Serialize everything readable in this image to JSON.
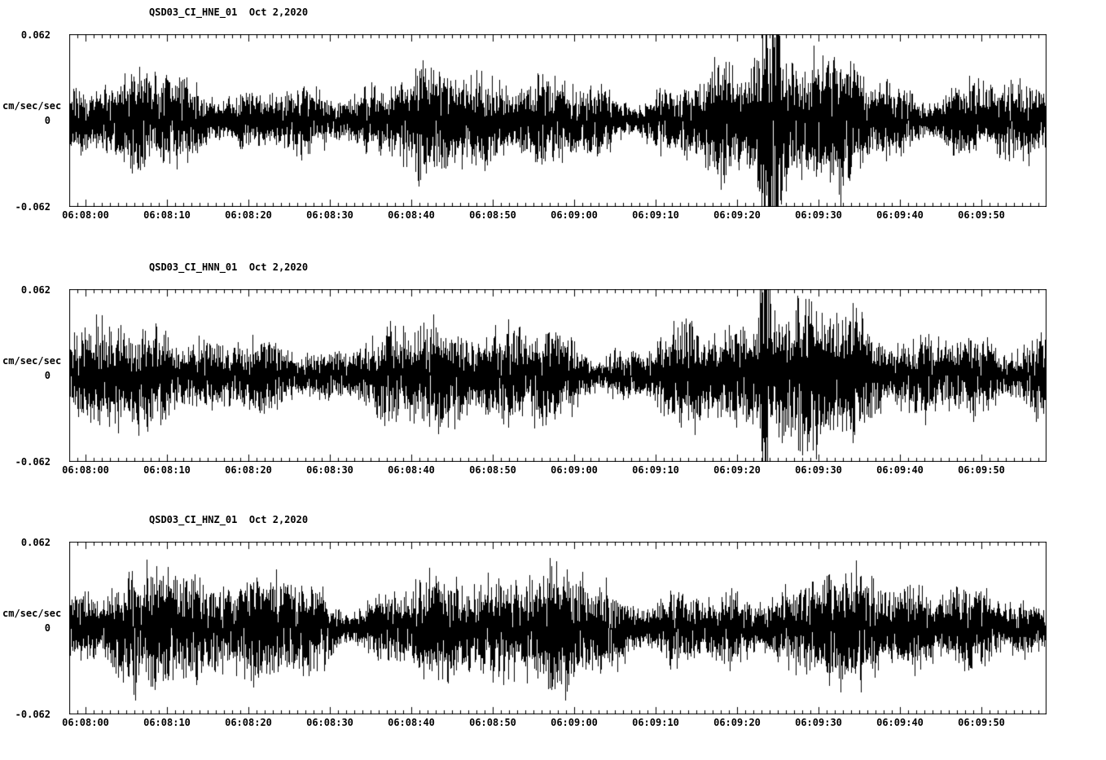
{
  "page": {
    "background": "#ffffff",
    "text_color": "#000000"
  },
  "chart_data": [
    {
      "type": "line",
      "subtype": "seismogram",
      "title": "QSD03_CI_HNE_01  Oct 2,2020",
      "station": "QSD03_CI_HNE_01",
      "channel": "HNE",
      "date": "Oct 2,2020",
      "ylabel": "cm/sec/sec",
      "ylim": [
        -0.062,
        0.062
      ],
      "ytick_labels": [
        "0.062",
        "0",
        "-0.062"
      ],
      "x_start": "06:08:00",
      "x_end": "06:10:00",
      "duration_seconds": 120,
      "t_offset_seconds": -2,
      "xtick_labels": [
        "06:08:00",
        "06:08:10",
        "06:08:20",
        "06:08:30",
        "06:08:40",
        "06:08:50",
        "06:09:00",
        "06:09:10",
        "06:09:20",
        "06:09:30",
        "06:09:40",
        "06:09:50"
      ],
      "grid": false,
      "line_color": "#000000",
      "waveform": {
        "kind": "continuous-accelerometer-noise",
        "base_amplitude": 0.0115,
        "typical_peak": 0.02,
        "seed": 101,
        "trend": [
          0.9,
          1.15
        ],
        "bursts": [
          {
            "time": "06:09:24",
            "t": 84,
            "sigma": 0.9,
            "gain": 1.9,
            "peak_amplitude": 0.05
          },
          {
            "time": "06:09:28",
            "t": 88,
            "sigma": 5,
            "gain": 0.3
          }
        ],
        "outlier_prob": 0.02
      }
    },
    {
      "type": "line",
      "subtype": "seismogram",
      "title": "QSD03_CI_HNN_01  Oct 2,2020",
      "station": "QSD03_CI_HNN_01",
      "channel": "HNN",
      "date": "Oct 2,2020",
      "ylabel": "cm/sec/sec",
      "ylim": [
        -0.062,
        0.062
      ],
      "ytick_labels": [
        "0.062",
        "0",
        "-0.062"
      ],
      "x_start": "06:08:00",
      "x_end": "06:10:00",
      "duration_seconds": 120,
      "t_offset_seconds": -2,
      "xtick_labels": [
        "06:08:00",
        "06:08:10",
        "06:08:20",
        "06:08:30",
        "06:08:40",
        "06:08:50",
        "06:09:00",
        "06:09:10",
        "06:09:20",
        "06:09:30",
        "06:09:40",
        "06:09:50"
      ],
      "grid": false,
      "line_color": "#000000",
      "waveform": {
        "kind": "continuous-accelerometer-noise",
        "base_amplitude": 0.012,
        "typical_peak": 0.02,
        "seed": 202,
        "trend": [
          0.95,
          1.1
        ],
        "bursts": [
          {
            "time": "06:09:23",
            "t": 83.5,
            "sigma": 0.4,
            "gain": 2.4,
            "peak_amplitude": -0.058
          },
          {
            "time": "06:09:30",
            "t": 90,
            "sigma": 12,
            "gain": 0.25
          }
        ],
        "outlier_prob": 0.02
      }
    },
    {
      "type": "line",
      "subtype": "seismogram",
      "title": "QSD03_CI_HNZ_01  Oct 2,2020",
      "station": "QSD03_CI_HNZ_01",
      "channel": "HNZ",
      "date": "Oct 2,2020",
      "ylabel": "cm/sec/sec",
      "ylim": [
        -0.062,
        0.062
      ],
      "ytick_labels": [
        "0.062",
        "0",
        "-0.062"
      ],
      "x_start": "06:08:00",
      "x_end": "06:10:00",
      "duration_seconds": 120,
      "t_offset_seconds": -2,
      "xtick_labels": [
        "06:08:00",
        "06:08:10",
        "06:08:20",
        "06:08:30",
        "06:08:40",
        "06:08:50",
        "06:09:00",
        "06:09:10",
        "06:09:20",
        "06:09:30",
        "06:09:40",
        "06:09:50"
      ],
      "grid": false,
      "line_color": "#000000",
      "waveform": {
        "kind": "continuous-accelerometer-noise",
        "base_amplitude": 0.0125,
        "typical_peak": 0.02,
        "seed": 303,
        "trend": [
          1.05,
          0.95
        ],
        "bursts": [
          {
            "time": "06:08:45",
            "t": 45,
            "sigma": 20,
            "gain": 0.12
          }
        ],
        "outlier_prob": 0.018
      }
    }
  ]
}
